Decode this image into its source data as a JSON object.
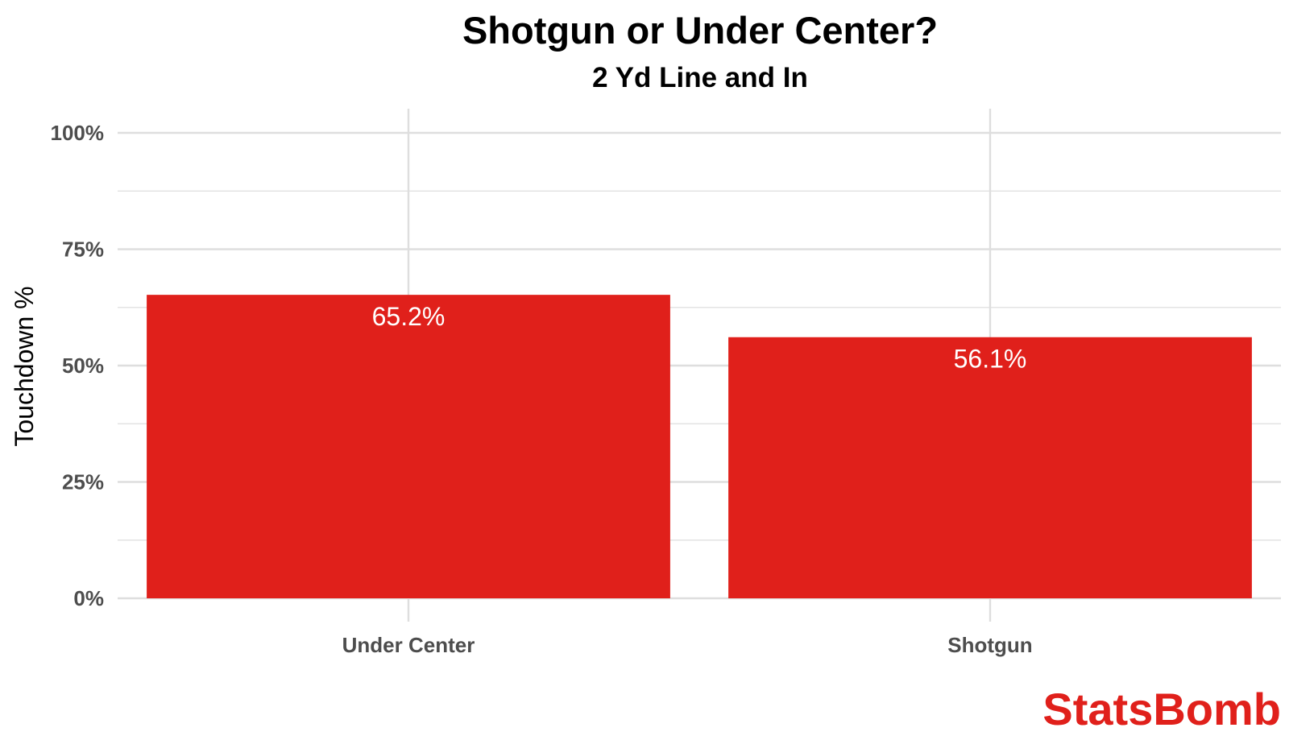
{
  "chart_data": {
    "type": "bar",
    "title": "Shotgun or Under Center?",
    "subtitle": "2 Yd Line and In",
    "xlabel": "",
    "ylabel": "Touchdown %",
    "categories": [
      "Under Center",
      "Shotgun"
    ],
    "values": [
      65.2,
      56.1
    ],
    "data_labels": [
      "65.2%",
      "56.1%"
    ],
    "ylim": [
      0,
      100
    ],
    "y_ticks": [
      0,
      25,
      50,
      75,
      100
    ],
    "y_tick_labels": [
      "0%",
      "25%",
      "50%",
      "75%",
      "100%"
    ],
    "grid": true,
    "legend": "none",
    "bar_color": "#e0201b"
  },
  "brand": {
    "logo_text": "StatsBomb",
    "color": "#e0201b"
  }
}
